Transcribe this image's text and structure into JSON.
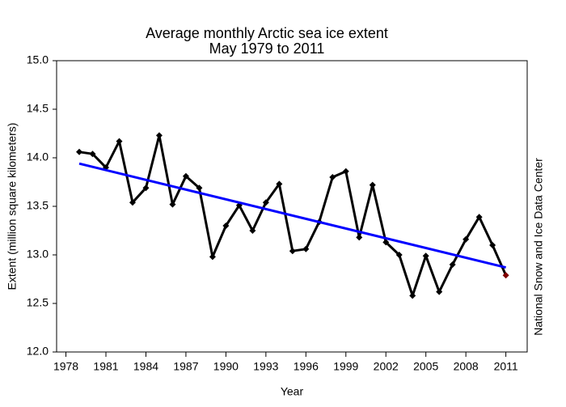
{
  "chart_data": {
    "type": "line",
    "title": "Average monthly Arctic sea ice extent",
    "subtitle": "May 1979 to 2011",
    "x_label": "Year",
    "y_label": "Extent (million square kilometers)",
    "source": "National Snow and Ice Data Center",
    "x": [
      1979,
      1980,
      1981,
      1982,
      1983,
      1984,
      1985,
      1986,
      1987,
      1988,
      1989,
      1990,
      1991,
      1992,
      1993,
      1994,
      1995,
      1996,
      1997,
      1998,
      1999,
      2000,
      2001,
      2002,
      2003,
      2004,
      2005,
      2006,
      2007,
      2008,
      2009,
      2010,
      2011
    ],
    "series": [
      {
        "color": "#000000",
        "last_point_color": "#800000",
        "values": [
          14.06,
          14.04,
          13.9,
          14.17,
          13.54,
          13.69,
          14.23,
          13.52,
          13.81,
          13.69,
          12.98,
          13.3,
          13.51,
          13.25,
          13.54,
          13.73,
          13.04,
          13.06,
          13.34,
          13.8,
          13.86,
          13.18,
          13.72,
          13.13,
          13.0,
          12.58,
          12.99,
          12.62,
          12.9,
          13.16,
          13.39,
          13.1,
          12.79
        ]
      }
    ],
    "trend": {
      "color": "#0000ff",
      "x": [
        1979,
        2011
      ],
      "values": [
        13.94,
        12.87
      ]
    },
    "xlim": [
      1977.3,
      2012.6
    ],
    "xticks": [
      1978,
      1981,
      1984,
      1987,
      1990,
      1993,
      1996,
      1999,
      2002,
      2005,
      2008,
      2011
    ],
    "ylim": [
      12,
      15
    ],
    "yticks": [
      {
        "value": 12,
        "label": "12.0"
      },
      12.5,
      {
        "value": 13,
        "label": "13.0"
      },
      13.5,
      {
        "value": 14,
        "label": "14.0"
      },
      14.5,
      {
        "value": 15,
        "label": "15.0"
      }
    ]
  }
}
